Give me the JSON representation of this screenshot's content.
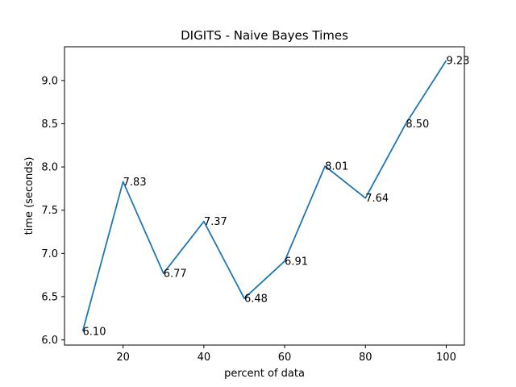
{
  "chart_data": {
    "type": "line",
    "title": "DIGITS - Naive Bayes Times",
    "xlabel": "percent of data",
    "ylabel": "time (seconds)",
    "x": [
      10,
      20,
      30,
      40,
      50,
      60,
      70,
      80,
      90,
      100
    ],
    "series": [
      {
        "values": [
          6.1,
          7.83,
          6.77,
          7.37,
          6.48,
          6.91,
          8.01,
          7.64,
          8.5,
          9.23
        ],
        "point_labels": [
          "6.10",
          "7.83",
          "6.77",
          "7.37",
          "6.48",
          "6.91",
          "8.01",
          "7.64",
          "8.50",
          "9.23"
        ],
        "color": "#1f77b4"
      }
    ],
    "xlim": [
      5.5,
      104.5
    ],
    "ylim": [
      5.94,
      9.39
    ],
    "xticks": [
      20,
      40,
      60,
      80,
      100
    ],
    "xtick_labels": [
      "20",
      "40",
      "60",
      "80",
      "100"
    ],
    "yticks": [
      6.0,
      6.5,
      7.0,
      7.5,
      8.0,
      8.5,
      9.0
    ],
    "ytick_labels": [
      "6.0",
      "6.5",
      "7.0",
      "7.5",
      "8.0",
      "8.5",
      "9.0"
    ],
    "grid": false,
    "legend": "none"
  }
}
